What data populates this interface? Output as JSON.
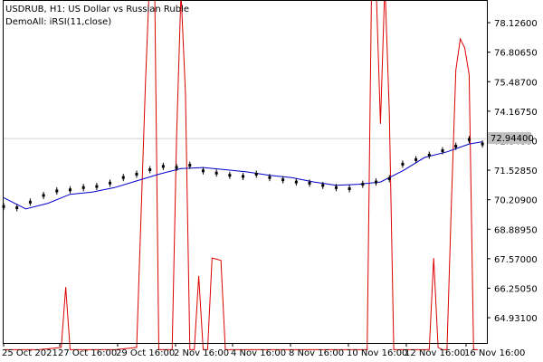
{
  "header": {
    "symbol_line": "USDRUB, H1:  US Dollar vs Russian Ruble",
    "indicator_line": "DemoAll: iRSI(11,close)"
  },
  "current_price_label": "72.94400",
  "colors": {
    "background": "#ffffff",
    "price_bars": "#000000",
    "moving_average": "#0000cc",
    "rsi_line": "#dd0000",
    "grid": "#cccccc",
    "current_price_box": "#c0c0c0"
  },
  "chart_data": {
    "type": "line",
    "title": "USDRUB, H1:  US Dollar vs Russian Ruble",
    "y_ticks": [
      "78.12600",
      "76.80650",
      "75.48700",
      "74.16750",
      "72.84800",
      "71.52850",
      "70.20900",
      "68.88950",
      "67.57000",
      "66.25050",
      "64.93100"
    ],
    "x_ticks": [
      "25 Oct 2021",
      "27 Oct 16:00",
      "29 Oct 16:00",
      "2 Nov 16:00",
      "4 Nov 16:00",
      "8 Nov 16:00",
      "10 Nov 16:00",
      "12 Nov 16:00",
      "16 Nov 16:00"
    ],
    "ylim": [
      63.8,
      79.1
    ],
    "x_count": 110,
    "grid": true,
    "series": [
      {
        "name": "USDRUB",
        "style": "bars",
        "x": [
          0,
          3,
          6,
          9,
          12,
          15,
          18,
          21,
          24,
          27,
          30,
          33,
          36,
          39,
          42,
          45,
          48,
          51,
          54,
          57,
          60,
          63,
          66,
          69,
          72,
          75,
          78,
          81,
          84,
          87,
          90,
          93,
          96,
          99,
          102,
          105,
          108
        ],
        "values": [
          69.9,
          69.85,
          70.1,
          70.4,
          70.6,
          70.65,
          70.75,
          70.8,
          70.95,
          71.2,
          71.35,
          71.55,
          71.7,
          71.65,
          71.75,
          71.5,
          71.4,
          71.3,
          71.25,
          71.35,
          71.2,
          71.1,
          71.0,
          70.95,
          70.85,
          70.75,
          70.7,
          70.9,
          71.0,
          71.15,
          71.8,
          72.0,
          72.2,
          72.4,
          72.6,
          72.9,
          72.7
        ]
      },
      {
        "name": "MA",
        "style": "line",
        "x": [
          0,
          5,
          10,
          15,
          20,
          25,
          30,
          35,
          40,
          45,
          50,
          55,
          60,
          65,
          70,
          75,
          80,
          85,
          90,
          95,
          100,
          105,
          108
        ],
        "values": [
          70.3,
          69.8,
          70.05,
          70.45,
          70.55,
          70.75,
          71.05,
          71.35,
          71.6,
          71.65,
          71.55,
          71.45,
          71.3,
          71.2,
          71.0,
          70.85,
          70.9,
          71.0,
          71.5,
          72.1,
          72.35,
          72.7,
          72.8
        ]
      },
      {
        "name": "RSI",
        "style": "line",
        "x": [
          0,
          8,
          13,
          14,
          15,
          17,
          20,
          25,
          30,
          32,
          33,
          34,
          35,
          36,
          38,
          39,
          40,
          41,
          42,
          43,
          44,
          45,
          46,
          47,
          49,
          50,
          82,
          83,
          84,
          85,
          86,
          87,
          88,
          89,
          90,
          91,
          93,
          96,
          97,
          98,
          99,
          100,
          101,
          102,
          103,
          104,
          105,
          106,
          107
        ],
        "values": [
          63.5,
          63.5,
          63.6,
          66.3,
          63.5,
          63.5,
          63.5,
          63.5,
          63.6,
          75.5,
          80.5,
          80.8,
          63.5,
          63.5,
          63.5,
          73.0,
          79.5,
          75.0,
          63.5,
          63.5,
          66.8,
          63.5,
          63.5,
          67.6,
          67.5,
          63.5,
          63.5,
          79.9,
          79.9,
          73.6,
          79.9,
          74.1,
          63.5,
          63.5,
          63.5,
          63.5,
          63.5,
          63.5,
          67.6,
          63.6,
          63.5,
          63.5,
          70.1,
          76.0,
          77.4,
          77.0,
          75.8,
          63.5,
          63.5
        ]
      }
    ]
  }
}
